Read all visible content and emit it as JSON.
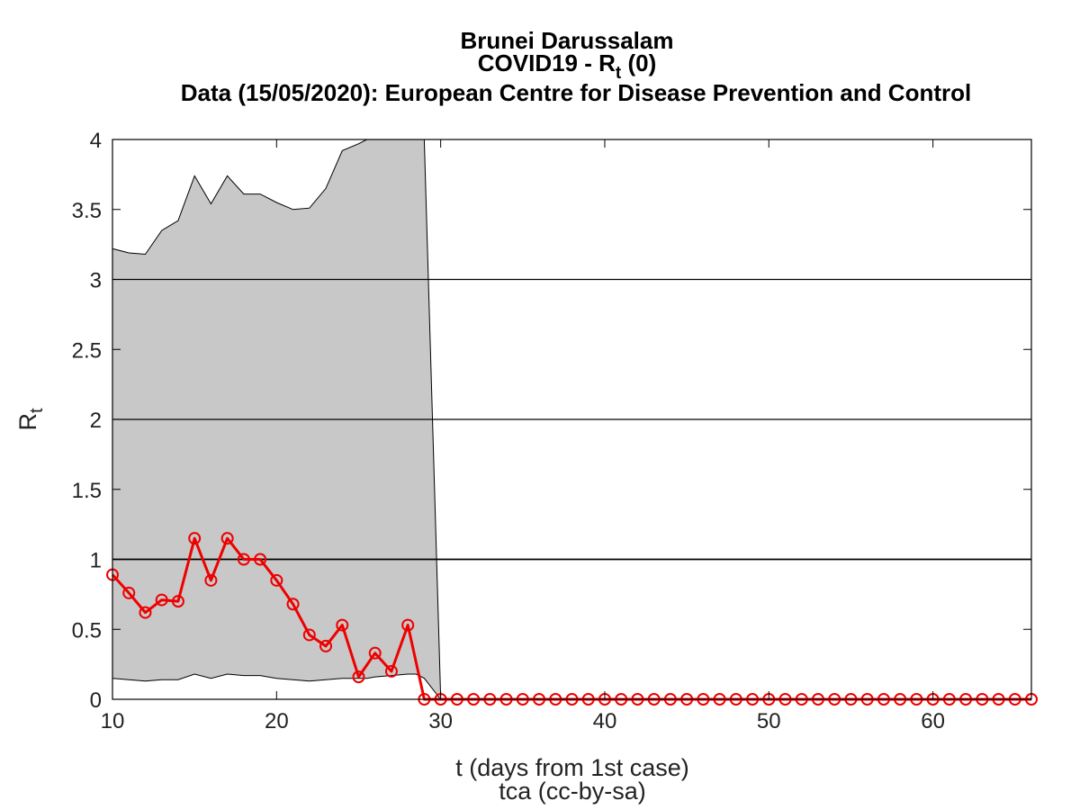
{
  "chart_data": {
    "type": "line",
    "title_lines": [
      "Brunei Darussalam",
      "COVID19 - R",
      "t",
      " (0)",
      "Data (15/05/2020): European Centre for Disease Prevention and Control"
    ],
    "xlabel": "t (days from 1st case)",
    "xlabel2": "tca (cc-by-sa)",
    "ylabel": "R",
    "ylabel_sub": "t",
    "xlim": [
      10,
      66
    ],
    "ylim": [
      0,
      4
    ],
    "xticks": [
      10,
      20,
      30,
      40,
      50,
      60
    ],
    "yticks": [
      0,
      0.5,
      1,
      1.5,
      2,
      2.5,
      3,
      3.5,
      4
    ],
    "xtick_labels": [
      "10",
      "20",
      "30",
      "40",
      "50",
      "60"
    ],
    "ytick_labels": [
      "0",
      "0.5",
      "1",
      "1.5",
      "2",
      "2.5",
      "3",
      "3.5",
      "4"
    ],
    "hlines": [
      1,
      2,
      3
    ],
    "grid": false,
    "colors": {
      "series": "#ee0000",
      "band_fill": "#c8c8c8",
      "axis": "#000000"
    },
    "band": {
      "x": [
        10,
        11,
        12,
        13,
        14,
        15,
        16,
        17,
        18,
        19,
        20,
        21,
        22,
        23,
        24,
        25,
        25.5,
        26,
        27,
        28,
        28.5,
        29,
        30
      ],
      "upper": [
        3.22,
        3.19,
        3.18,
        3.35,
        3.42,
        3.74,
        3.54,
        3.74,
        3.61,
        3.61,
        3.55,
        3.5,
        3.51,
        3.65,
        3.92,
        3.97,
        4.0,
        4.0,
        4.0,
        4.0,
        4.0,
        4.0,
        0.02
      ],
      "lower": [
        0.15,
        0.14,
        0.13,
        0.14,
        0.14,
        0.18,
        0.15,
        0.18,
        0.17,
        0.17,
        0.15,
        0.14,
        0.13,
        0.14,
        0.15,
        0.15,
        0.15,
        0.16,
        0.17,
        0.18,
        0.18,
        0.15,
        0.0
      ]
    },
    "series": [
      {
        "x": [
          10,
          11,
          12,
          13,
          14,
          15,
          16,
          17,
          18,
          19,
          20,
          21,
          22,
          23,
          24,
          25,
          26,
          27,
          28,
          29,
          30,
          31,
          32,
          33,
          34,
          35,
          36,
          37,
          38,
          39,
          40,
          41,
          42,
          43,
          44,
          45,
          46,
          47,
          48,
          49,
          50,
          51,
          52,
          53,
          54,
          55,
          56,
          57,
          58,
          59,
          60,
          61,
          62,
          63,
          64,
          65,
          66
        ],
        "values": [
          0.89,
          0.76,
          0.62,
          0.71,
          0.7,
          1.15,
          0.85,
          1.15,
          1.0,
          1.0,
          0.85,
          0.68,
          0.46,
          0.38,
          0.53,
          0.16,
          0.33,
          0.2,
          0.53,
          0,
          0,
          0,
          0,
          0,
          0,
          0,
          0,
          0,
          0,
          0,
          0,
          0,
          0,
          0,
          0,
          0,
          0,
          0,
          0,
          0,
          0,
          0,
          0,
          0,
          0,
          0,
          0,
          0,
          0,
          0,
          0,
          0,
          0,
          0,
          0,
          0,
          0
        ]
      }
    ]
  }
}
